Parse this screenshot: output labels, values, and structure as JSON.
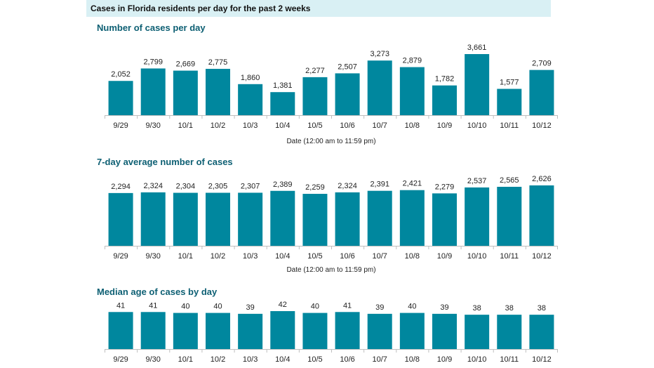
{
  "header": {
    "title": "Cases in Florida residents per day for the past 2 weeks"
  },
  "colors": {
    "bar": "#00879e",
    "header_bg": "#d9f0f4",
    "title": "#0d5f73",
    "axis": "#bfbfbf"
  },
  "chart_data": [
    {
      "type": "bar",
      "title": "Number of cases per day",
      "xlabel": "Date (12:00 am to 11:59 pm)",
      "ylabel": "",
      "categories": [
        "9/29",
        "9/30",
        "10/1",
        "10/2",
        "10/3",
        "10/4",
        "10/5",
        "10/6",
        "10/7",
        "10/8",
        "10/9",
        "10/10",
        "10/11",
        "10/12"
      ],
      "values": [
        2052,
        2799,
        2669,
        2775,
        1860,
        1381,
        2277,
        2507,
        3273,
        2879,
        1782,
        3661,
        1577,
        2709
      ],
      "value_labels": [
        "2,052",
        "2,799",
        "2,669",
        "2,775",
        "1,860",
        "1,381",
        "2,277",
        "2,507",
        "3,273",
        "2,879",
        "1,782",
        "3,661",
        "1,577",
        "2,709"
      ],
      "ylim": [
        0,
        3661
      ]
    },
    {
      "type": "bar",
      "title": "7-day average number of cases",
      "xlabel": "Date (12:00 am to 11:59 pm)",
      "ylabel": "",
      "categories": [
        "9/29",
        "9/30",
        "10/1",
        "10/2",
        "10/3",
        "10/4",
        "10/5",
        "10/6",
        "10/7",
        "10/8",
        "10/9",
        "10/10",
        "10/11",
        "10/12"
      ],
      "values": [
        2294,
        2324,
        2304,
        2305,
        2307,
        2389,
        2259,
        2324,
        2391,
        2421,
        2279,
        2537,
        2565,
        2626
      ],
      "value_labels": [
        "2,294",
        "2,324",
        "2,304",
        "2,305",
        "2,307",
        "2,389",
        "2,259",
        "2,324",
        "2,391",
        "2,421",
        "2,279",
        "2,537",
        "2,565",
        "2,626"
      ],
      "ylim": [
        0,
        2626
      ]
    },
    {
      "type": "bar",
      "title": "Median age of cases by day",
      "xlabel": "",
      "ylabel": "",
      "categories": [
        "9/29",
        "9/30",
        "10/1",
        "10/2",
        "10/3",
        "10/4",
        "10/5",
        "10/6",
        "10/7",
        "10/8",
        "10/9",
        "10/10",
        "10/11",
        "10/12"
      ],
      "values": [
        41,
        41,
        40,
        40,
        39,
        42,
        40,
        41,
        39,
        40,
        39,
        38,
        38,
        38
      ],
      "value_labels": [
        "41",
        "41",
        "40",
        "40",
        "39",
        "42",
        "40",
        "41",
        "39",
        "40",
        "39",
        "38",
        "38",
        "38"
      ],
      "ylim": [
        0,
        42
      ]
    }
  ]
}
